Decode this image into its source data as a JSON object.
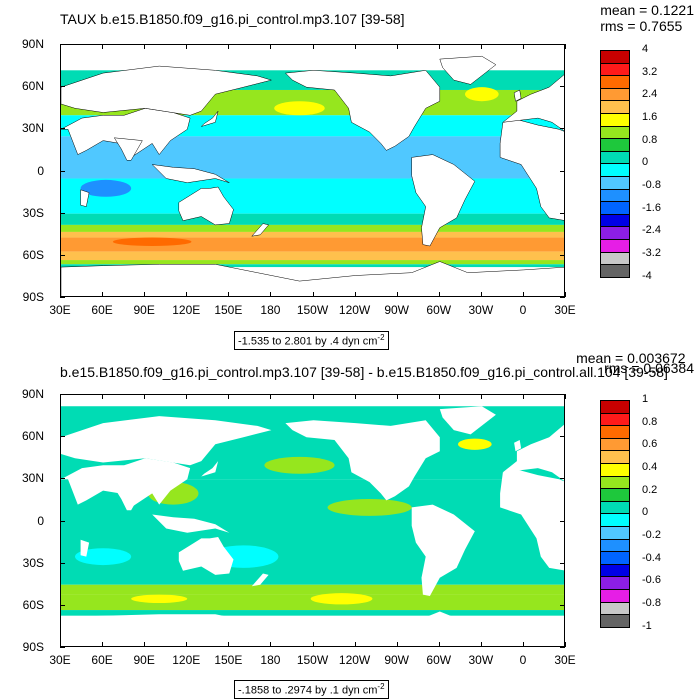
{
  "chart_data": [
    {
      "type": "heatmap",
      "title": "TAUX b.e15.B1850.f09_g16.pi_control.mp3.107 [39-58]",
      "stats": {
        "mean": "mean = 0.1221",
        "rms": "rms = 0.7655"
      },
      "x_ticks": [
        "30E",
        "60E",
        "90E",
        "120E",
        "150E",
        "180",
        "150W",
        "120W",
        "90W",
        "60W",
        "30W",
        "0",
        "30E"
      ],
      "y_ticks": [
        "90N",
        "60N",
        "30N",
        "0",
        "30S",
        "60S",
        "90S"
      ],
      "xlim": [
        30,
        390
      ],
      "ylim": [
        -90,
        90
      ],
      "colorbar_levels": [
        "4",
        "3.2",
        "2.4",
        "1.6",
        "0.8",
        "0",
        "-0.8",
        "-1.6",
        "-2.4",
        "-3.2",
        "-4"
      ],
      "colorbar_colors": [
        "#c80000",
        "#ff1a1a",
        "#ff6a00",
        "#ff9a33",
        "#ffc04d",
        "#ffff00",
        "#96e61e",
        "#1ec83c",
        "#00dcb4",
        "#00ffff",
        "#50c8ff",
        "#1e90ff",
        "#0064ff",
        "#0000e6",
        "#8c1ee6",
        "#e61ee6",
        "#c8c8c8",
        "#646464"
      ],
      "contour_info": "-1.535 to 2.801 by .4 dyn cm",
      "contour_info_sup": "-2",
      "bands": [
        {
          "lat_top": 72,
          "lat_bottom": 58,
          "color": "#00dcb4"
        },
        {
          "lat_top": 58,
          "lat_bottom": 40,
          "color": "#96e61e"
        },
        {
          "lat_top": 40,
          "lat_bottom": 25,
          "color": "#00ffff"
        },
        {
          "lat_top": 25,
          "lat_bottom": -5,
          "color": "#50c8ff"
        },
        {
          "lat_top": -5,
          "lat_bottom": -30,
          "color": "#00ffff"
        },
        {
          "lat_top": -30,
          "lat_bottom": -38,
          "color": "#00dcb4"
        },
        {
          "lat_top": -38,
          "lat_bottom": -43,
          "color": "#96e61e"
        },
        {
          "lat_top": -43,
          "lat_bottom": -47,
          "color": "#ffc04d"
        },
        {
          "lat_top": -47,
          "lat_bottom": -57,
          "color": "#ff9a33"
        },
        {
          "lat_top": -57,
          "lat_bottom": -63,
          "color": "#ffc04d"
        },
        {
          "lat_top": -63,
          "lat_bottom": -66,
          "color": "#96e61e"
        },
        {
          "lat_top": -66,
          "lat_bottom": -68,
          "color": "#00dcb4"
        }
      ],
      "highlights": [
        {
          "lon": 200,
          "lat": 45,
          "rx": 18,
          "ry": 5,
          "color": "#ffff00"
        },
        {
          "lon": 330,
          "lat": 55,
          "rx": 12,
          "ry": 5,
          "color": "#ffff00"
        },
        {
          "lon": 62,
          "lat": -12,
          "rx": 18,
          "ry": 6,
          "color": "#1e90ff"
        },
        {
          "lon": 95,
          "lat": -50,
          "rx": 28,
          "ry": 3,
          "color": "#ff6a00"
        }
      ]
    },
    {
      "type": "heatmap",
      "title": "b.e15.B1850.f09_g16.pi_control.mp3.107 [39-58] - b.e15.B1850.f09_g16.pi_control.all.104 [39-58]",
      "stats": {
        "mean": "mean = 0.003672",
        "rms": "rms = 0.06384"
      },
      "x_ticks": [
        "30E",
        "60E",
        "90E",
        "120E",
        "150E",
        "180",
        "150W",
        "120W",
        "90W",
        "60W",
        "30W",
        "0",
        "30E"
      ],
      "y_ticks": [
        "90N",
        "60N",
        "30N",
        "0",
        "30S",
        "60S",
        "90S"
      ],
      "xlim": [
        30,
        390
      ],
      "ylim": [
        -90,
        90
      ],
      "colorbar_levels": [
        "1",
        "0.8",
        "0.6",
        "0.4",
        "0.2",
        "0",
        "-0.2",
        "-0.4",
        "-0.6",
        "-0.8",
        "-1"
      ],
      "colorbar_colors": [
        "#c80000",
        "#ff1a1a",
        "#ff6a00",
        "#ff9a33",
        "#ffc04d",
        "#ffff00",
        "#96e61e",
        "#1ec83c",
        "#00dcb4",
        "#00ffff",
        "#50c8ff",
        "#1e90ff",
        "#0064ff",
        "#0000e6",
        "#8c1ee6",
        "#e61ee6",
        "#c8c8c8",
        "#646464"
      ],
      "contour_info": "-.1858 to .2974 by .1 dyn cm",
      "contour_info_sup": "-2",
      "bands": [
        {
          "lat_top": 82,
          "lat_bottom": 30,
          "color": "#00dcb4"
        },
        {
          "lat_top": 30,
          "lat_bottom": -45,
          "color": "#00dcb4"
        },
        {
          "lat_top": -45,
          "lat_bottom": -52,
          "color": "#96e61e"
        },
        {
          "lat_top": -52,
          "lat_bottom": -63,
          "color": "#96e61e"
        },
        {
          "lat_top": -63,
          "lat_bottom": -67,
          "color": "#00dcb4"
        }
      ],
      "highlights": [
        {
          "lon": 110,
          "lat": 20,
          "rx": 18,
          "ry": 8,
          "color": "#96e61e"
        },
        {
          "lon": 250,
          "lat": 10,
          "rx": 30,
          "ry": 6,
          "color": "#96e61e"
        },
        {
          "lon": 200,
          "lat": 40,
          "rx": 25,
          "ry": 6,
          "color": "#96e61e"
        },
        {
          "lon": 325,
          "lat": 55,
          "rx": 12,
          "ry": 4,
          "color": "#ffff00"
        },
        {
          "lon": 100,
          "lat": -55,
          "rx": 20,
          "ry": 3,
          "color": "#ffff00"
        },
        {
          "lon": 230,
          "lat": -55,
          "rx": 22,
          "ry": 4,
          "color": "#ffff00"
        },
        {
          "lon": 160,
          "lat": -25,
          "rx": 25,
          "ry": 8,
          "color": "#00ffff"
        },
        {
          "lon": 60,
          "lat": -25,
          "rx": 20,
          "ry": 6,
          "color": "#00ffff"
        }
      ]
    }
  ],
  "land_color": "#ffffff",
  "continents": [
    {
      "name": "north-america",
      "pts": [
        [
          190,
          70
        ],
        [
          210,
          72
        ],
        [
          240,
          70
        ],
        [
          265,
          68
        ],
        [
          290,
          72
        ],
        [
          300,
          60
        ],
        [
          300,
          50
        ],
        [
          290,
          45
        ],
        [
          282,
          32
        ],
        [
          278,
          25
        ],
        [
          268,
          18
        ],
        [
          262,
          15
        ],
        [
          258,
          20
        ],
        [
          250,
          28
        ],
        [
          237,
          35
        ],
        [
          235,
          45
        ],
        [
          225,
          58
        ],
        [
          205,
          60
        ],
        [
          195,
          65
        ]
      ]
    },
    {
      "name": "greenland",
      "pts": [
        [
          300,
          80
        ],
        [
          330,
          82
        ],
        [
          340,
          76
        ],
        [
          322,
          62
        ],
        [
          310,
          65
        ],
        [
          302,
          74
        ]
      ]
    },
    {
      "name": "south-america",
      "pts": [
        [
          280,
          10
        ],
        [
          295,
          12
        ],
        [
          310,
          5
        ],
        [
          325,
          -7
        ],
        [
          318,
          -20
        ],
        [
          312,
          -33
        ],
        [
          300,
          -40
        ],
        [
          293,
          -53
        ],
        [
          288,
          -52
        ],
        [
          287,
          -40
        ],
        [
          290,
          -25
        ],
        [
          283,
          -15
        ],
        [
          280,
          -3
        ]
      ]
    },
    {
      "name": "africa",
      "pts": [
        [
          345,
          35
        ],
        [
          355,
          37
        ],
        [
          370,
          33
        ],
        [
          385,
          30
        ],
        [
          390,
          28
        ],
        [
          390,
          -35
        ],
        [
          378,
          -33
        ],
        [
          372,
          -25
        ],
        [
          369,
          -12
        ],
        [
          358,
          5
        ],
        [
          343,
          10
        ],
        [
          343,
          20
        ]
      ]
    },
    {
      "name": "europe-asia-west",
      "pts": [
        [
          30,
          30
        ],
        [
          45,
          38
        ],
        [
          60,
          40
        ],
        [
          75,
          40
        ],
        [
          90,
          45
        ],
        [
          110,
          42
        ],
        [
          122,
          38
        ],
        [
          120,
          30
        ],
        [
          108,
          22
        ],
        [
          100,
          12
        ],
        [
          95,
          20
        ],
        [
          80,
          10
        ],
        [
          72,
          20
        ],
        [
          60,
          22
        ],
        [
          48,
          15
        ],
        [
          42,
          12
        ],
        [
          35,
          30
        ]
      ]
    },
    {
      "name": "asia-north",
      "pts": [
        [
          30,
          60
        ],
        [
          60,
          70
        ],
        [
          100,
          75
        ],
        [
          140,
          72
        ],
        [
          170,
          68
        ],
        [
          180,
          65
        ],
        [
          160,
          60
        ],
        [
          140,
          55
        ],
        [
          130,
          43
        ],
        [
          122,
          40
        ],
        [
          90,
          45
        ],
        [
          60,
          42
        ],
        [
          40,
          45
        ],
        [
          30,
          48
        ]
      ]
    },
    {
      "name": "europe-east",
      "pts": [
        [
          345,
          35
        ],
        [
          355,
          43
        ],
        [
          355,
          50
        ],
        [
          365,
          55
        ],
        [
          378,
          60
        ],
        [
          390,
          70
        ],
        [
          390,
          28
        ],
        [
          380,
          35
        ],
        [
          370,
          38
        ]
      ]
    },
    {
      "name": "india",
      "pts": [
        [
          68,
          24
        ],
        [
          88,
          22
        ],
        [
          80,
          8
        ],
        [
          77,
          8
        ],
        [
          73,
          16
        ]
      ]
    },
    {
      "name": "australia",
      "pts": [
        [
          114,
          -22
        ],
        [
          122,
          -17
        ],
        [
          130,
          -12
        ],
        [
          136,
          -12
        ],
        [
          142,
          -11
        ],
        [
          146,
          -18
        ],
        [
          153,
          -27
        ],
        [
          150,
          -37
        ],
        [
          140,
          -38
        ],
        [
          130,
          -32
        ],
        [
          117,
          -35
        ],
        [
          114,
          -28
        ]
      ]
    },
    {
      "name": "indonesia",
      "pts": [
        [
          95,
          5
        ],
        [
          105,
          -5
        ],
        [
          120,
          -8
        ],
        [
          140,
          -5
        ],
        [
          150,
          -8
        ],
        [
          140,
          -2
        ],
        [
          125,
          2
        ],
        [
          110,
          3
        ]
      ]
    },
    {
      "name": "antarctica",
      "pts": [
        [
          30,
          -68
        ],
        [
          60,
          -67
        ],
        [
          100,
          -66
        ],
        [
          140,
          -66
        ],
        [
          170,
          -72
        ],
        [
          200,
          -78
        ],
        [
          240,
          -74
        ],
        [
          280,
          -72
        ],
        [
          300,
          -64
        ],
        [
          320,
          -72
        ],
        [
          360,
          -70
        ],
        [
          390,
          -68
        ],
        [
          390,
          -90
        ],
        [
          30,
          -90
        ]
      ]
    },
    {
      "name": "madagascar",
      "pts": [
        [
          44,
          -13
        ],
        [
          50,
          -15
        ],
        [
          48,
          -25
        ],
        [
          44,
          -24
        ]
      ]
    },
    {
      "name": "new-zealand",
      "pts": [
        [
          166,
          -46
        ],
        [
          174,
          -37
        ],
        [
          178,
          -38
        ],
        [
          172,
          -45
        ]
      ]
    },
    {
      "name": "japan",
      "pts": [
        [
          130,
          32
        ],
        [
          140,
          35
        ],
        [
          142,
          43
        ],
        [
          138,
          38
        ],
        [
          132,
          34
        ]
      ]
    },
    {
      "name": "uk",
      "pts": [
        [
          354,
          50
        ],
        [
          358,
          52
        ],
        [
          357,
          58
        ],
        [
          353,
          56
        ]
      ]
    }
  ]
}
